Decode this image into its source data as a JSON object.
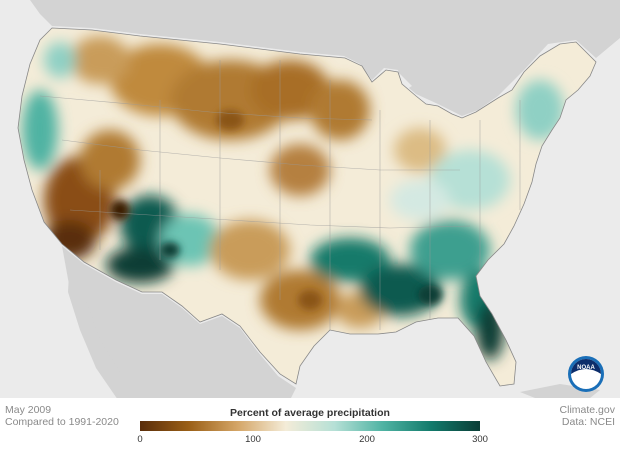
{
  "map": {
    "date_label": "May 2009",
    "baseline_label": "Compared to 1991-2020",
    "credit_site": "Climate.gov",
    "credit_data": "Data: NCEI",
    "logo_text": "NOAA"
  },
  "legend": {
    "title": "Percent of average precipitation",
    "ticks": [
      "0",
      "100",
      "200",
      "300"
    ],
    "min": 0,
    "max": 300,
    "colors": [
      "#5a2d0a",
      "#9a5f16",
      "#d4a566",
      "#f4ecd8",
      "#b6e0d6",
      "#4fb3a3",
      "#127a6b",
      "#0a3d36"
    ]
  },
  "colors": {
    "land_outside": "#cfcfcf",
    "ocean": "#ebebeb",
    "borders": "#9a9a9a",
    "very_dry": "#6b3810",
    "dry": "#b07a32",
    "near_normal": "#f4ecd8",
    "wet": "#6cc4b4",
    "very_wet": "#0e5a4f"
  }
}
